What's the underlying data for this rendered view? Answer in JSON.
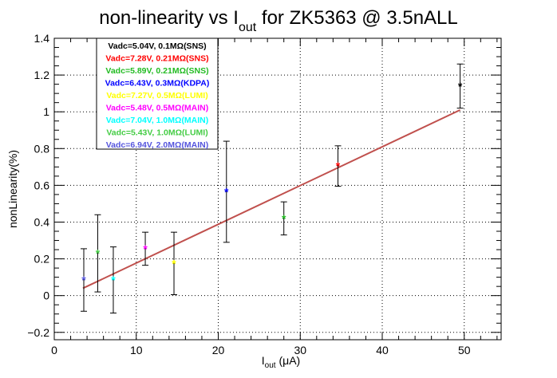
{
  "chart_data": {
    "type": "scatter",
    "title": "non-linearity vs I_out for ZK5363 @ 3.5nALL",
    "title_parts": {
      "pre": "non-linearity vs I",
      "sub": "out",
      "post": " for ZK5363 @ 3.5nALL"
    },
    "xlabel": "I_out (μA)",
    "xlabel_parts": {
      "pre": "I",
      "sub": "out",
      "post": " (μA)"
    },
    "ylabel": "nonLinearity(%)",
    "xlim": [
      0,
      54.5
    ],
    "ylim": [
      -0.24,
      1.4
    ],
    "xticks": [
      0,
      10,
      20,
      30,
      40,
      50
    ],
    "xtick_labels": [
      "0",
      "10",
      "20",
      "30",
      "40",
      "50"
    ],
    "yticks": [
      -0.2,
      0,
      0.2,
      0.4,
      0.6,
      0.8,
      1,
      1.2,
      1.4
    ],
    "ytick_labels": [
      "−0.2",
      "0",
      "0.2",
      "0.4",
      "0.6",
      "0.8",
      "1",
      "1.2",
      "1.4"
    ],
    "grid": true,
    "legend_position": "top-left",
    "series": [
      {
        "name": "Vadc=5.04V, 0.1MΩ(SNS)",
        "color": "#000000",
        "points": [
          {
            "x": 49.5,
            "y": 1.14,
            "err": 0.12
          }
        ]
      },
      {
        "name": "Vadc=7.28V, 0.21MΩ(SNS)",
        "color": "#ff0000",
        "points": [
          {
            "x": 34.6,
            "y": 0.705,
            "err": 0.11
          }
        ]
      },
      {
        "name": "Vadc=5.89V, 0.21MΩ(SNS)",
        "color": "#22bb22",
        "points": [
          {
            "x": 28.0,
            "y": 0.42,
            "err": 0.09
          }
        ]
      },
      {
        "name": "Vadc=6.43V, 0.3MΩ(KDPA)",
        "color": "#0000ff",
        "points": [
          {
            "x": 21.0,
            "y": 0.565,
            "err": 0.275
          }
        ]
      },
      {
        "name": "Vadc=7.27V, 0.5MΩ(LUMI)",
        "color": "#ffff00",
        "points": [
          {
            "x": 14.6,
            "y": 0.175,
            "err": 0.17
          }
        ]
      },
      {
        "name": "Vadc=5.48V, 0.5MΩ(MAIN)",
        "color": "#ff00ff",
        "points": [
          {
            "x": 11.1,
            "y": 0.255,
            "err": 0.09
          }
        ]
      },
      {
        "name": "Vadc=7.04V, 1.0MΩ(MAIN)",
        "color": "#00ffff",
        "points": [
          {
            "x": 7.2,
            "y": 0.085,
            "err": 0.18
          }
        ]
      },
      {
        "name": "Vadc=5.43V, 1.0MΩ(LUMI)",
        "color": "#44cc44",
        "points": [
          {
            "x": 5.3,
            "y": 0.23,
            "err": 0.21
          }
        ]
      },
      {
        "name": "Vadc=6.94V, 2.0MΩ(MAIN)",
        "color": "#5555dd",
        "points": [
          {
            "x": 3.6,
            "y": 0.085,
            "err": 0.17
          }
        ]
      }
    ],
    "fit_line": {
      "color": "#c0504d",
      "x": [
        3.5,
        49.5
      ],
      "y": [
        0.04,
        1.01
      ]
    }
  }
}
